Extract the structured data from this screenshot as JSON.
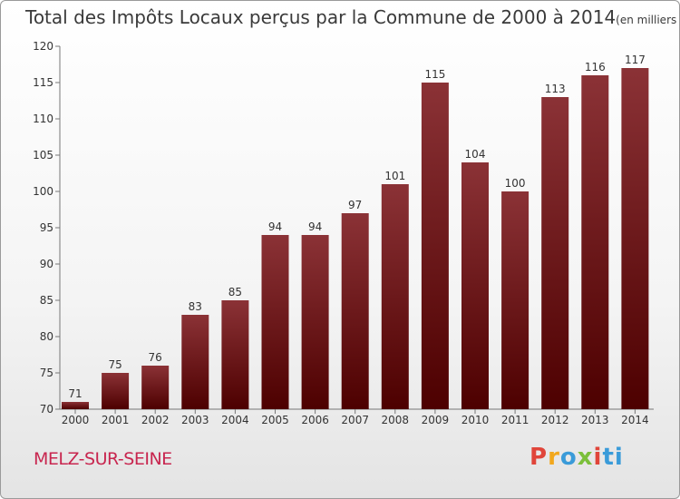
{
  "title": "Total des Impôts Locaux perçus par la Commune de 2000 à 2014",
  "title_unit": "(en milliers d'€)",
  "commune": "MELZ-SUR-SEINE",
  "logo": {
    "parts": [
      "P",
      "r",
      "o",
      "x",
      "i",
      "ti"
    ]
  },
  "colors": {
    "bar_top": "#8b3236",
    "bar_bottom": "#4d0000",
    "axis": "#777777",
    "text": "#333333",
    "commune": "#c8264f"
  },
  "chart_data": {
    "type": "bar",
    "title": "Total des Impôts Locaux perçus par la Commune de 2000 à 2014",
    "ylabel": "(en milliers d'€)",
    "xlabel": "",
    "categories": [
      "2000",
      "2001",
      "2002",
      "2003",
      "2004",
      "2005",
      "2006",
      "2007",
      "2008",
      "2009",
      "2010",
      "2011",
      "2012",
      "2013",
      "2014"
    ],
    "values": [
      71,
      75,
      76,
      83,
      85,
      94,
      94,
      97,
      101,
      115,
      104,
      100,
      113,
      116,
      117
    ],
    "ylim": [
      70,
      120
    ],
    "yticks": [
      "70",
      "75",
      "80",
      "85",
      "90",
      "95",
      "100",
      "105",
      "110",
      "115",
      "120"
    ],
    "grid": false
  }
}
